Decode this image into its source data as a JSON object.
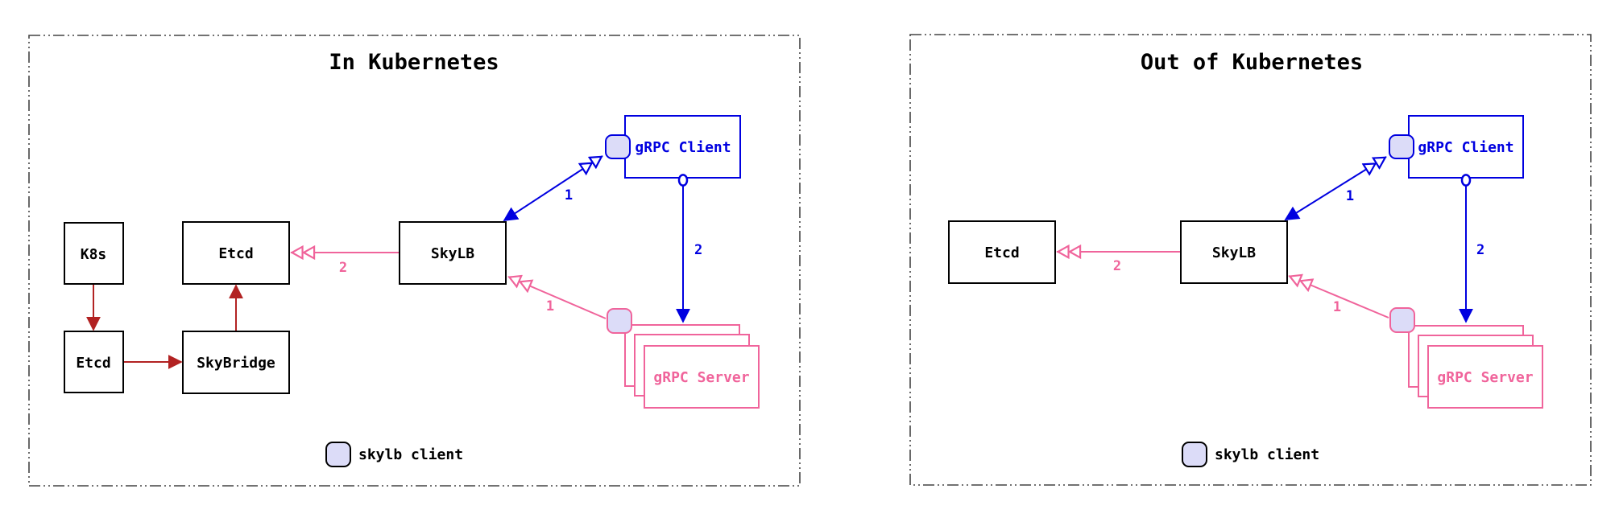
{
  "colors": {
    "blue": "#0000e0",
    "pink": "#f0649b",
    "dark_red": "#b22222",
    "chip_fill": "#dcdcf8"
  },
  "left_panel": {
    "title": "In Kubernetes",
    "k8s": "K8s",
    "etcd_k8s": "Etcd",
    "etcd_main": "Etcd",
    "skybridge": "SkyBridge",
    "skylb": "SkyLB",
    "grpc_client": "gRPC Client",
    "grpc_server": "gRPC Server",
    "edge_client_skylb": "1",
    "edge_client_server": "2",
    "edge_skylb_etcd": "2",
    "edge_server_skylb": "1",
    "legend": "skylb client"
  },
  "right_panel": {
    "title": "Out of Kubernetes",
    "etcd_main": "Etcd",
    "skylb": "SkyLB",
    "grpc_client": "gRPC Client",
    "grpc_server": "gRPC Server",
    "edge_client_skylb": "1",
    "edge_client_server": "2",
    "edge_skylb_etcd": "2",
    "edge_server_skylb": "1",
    "legend": "skylb client"
  }
}
